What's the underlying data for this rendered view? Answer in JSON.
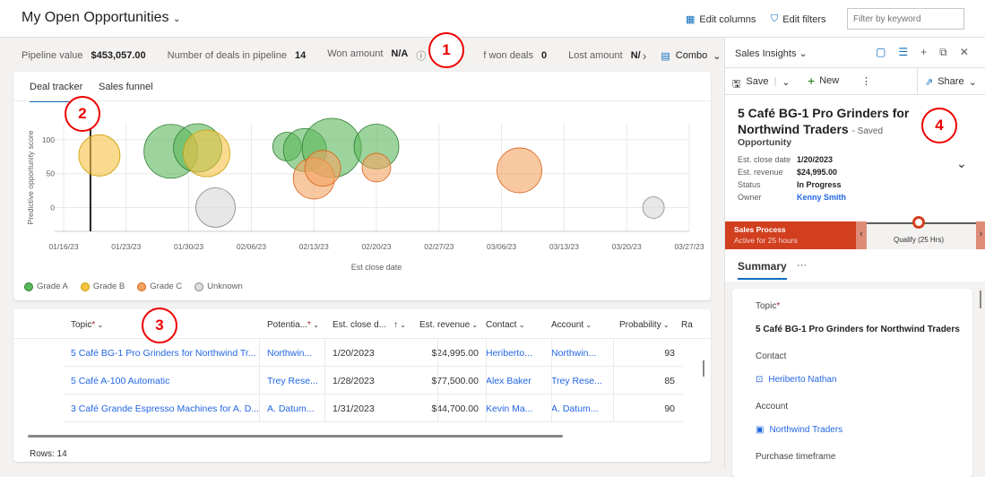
{
  "header": {
    "title": "My Open Opportunities",
    "edit_columns": "Edit columns",
    "edit_filters": "Edit filters",
    "filter_placeholder": "Filter by keyword"
  },
  "kpis": [
    {
      "label": "Pipeline value",
      "value": "$453,057.00"
    },
    {
      "label": "Number of deals in pipeline",
      "value": "14"
    },
    {
      "label": "Won amount",
      "value": "N/A"
    },
    {
      "label": "f won deals",
      "value": "0"
    },
    {
      "label": "Lost amount",
      "value": "N/"
    }
  ],
  "view_selector": "Combo",
  "callouts": [
    "1",
    "2",
    "3",
    "4"
  ],
  "chart_tabs": [
    "Deal tracker",
    "Sales funnel"
  ],
  "chart_data": {
    "type": "scatter",
    "xlabel": "Est close date",
    "ylabel": "Predictive opportunity score",
    "x_ticks": [
      "01/16/23",
      "01/23/23",
      "01/30/23",
      "02/06/23",
      "02/13/23",
      "02/20/23",
      "02/27/23",
      "03/06/23",
      "03/13/23",
      "03/20/23",
      "03/27/23"
    ],
    "y_ticks": [
      "0",
      "50",
      "100"
    ],
    "xlim": [
      "2023-01-16",
      "2023-03-27"
    ],
    "ylim": [
      -35,
      125
    ],
    "grid": true,
    "legend": "bottom-left",
    "today_marker": "2023-01-19",
    "series": [
      {
        "name": "Grade A",
        "color": "#5cb85c",
        "points": [
          {
            "x": "2023-01-28",
            "y": 83,
            "size": 30
          },
          {
            "x": "2023-01-31",
            "y": 88,
            "size": 27
          },
          {
            "x": "2023-02-10",
            "y": 90,
            "size": 16
          },
          {
            "x": "2023-02-12",
            "y": 85,
            "size": 24
          },
          {
            "x": "2023-02-15",
            "y": 88,
            "size": 33
          },
          {
            "x": "2023-02-20",
            "y": 90,
            "size": 25
          }
        ]
      },
      {
        "name": "Grade B",
        "color": "#f5c242",
        "points": [
          {
            "x": "2023-01-20",
            "y": 77,
            "size": 23
          },
          {
            "x": "2023-02-01",
            "y": 80,
            "size": 26
          }
        ]
      },
      {
        "name": "Grade C",
        "color": "#f4a460",
        "points": [
          {
            "x": "2023-02-13",
            "y": 43,
            "size": 23
          },
          {
            "x": "2023-02-14",
            "y": 58,
            "size": 20
          },
          {
            "x": "2023-02-20",
            "y": 59,
            "size": 16
          },
          {
            "x": "2023-03-08",
            "y": 55,
            "size": 25
          }
        ]
      },
      {
        "name": "Unknown",
        "color": "#dddddd",
        "points": [
          {
            "x": "2023-02-02",
            "y": 0,
            "size": 22
          },
          {
            "x": "2023-03-23",
            "y": 0,
            "size": 12
          }
        ]
      }
    ]
  },
  "grid": {
    "columns": [
      "Topic",
      "Potentia...",
      "Est. close d...",
      "Est. revenue",
      "Contact",
      "Account",
      "Probability",
      "Ra"
    ],
    "rows": [
      [
        "5 Café BG-1 Pro Grinders for Northwind Tr...",
        "Northwin...",
        "1/20/2023",
        "$24,995.00",
        "Heriberto...",
        "Northwin...",
        "93"
      ],
      [
        "5 Café A-100 Automatic",
        "Trey Rese...",
        "1/28/2023",
        "$77,500.00",
        "Alex Baker",
        "Trey Rese...",
        "85"
      ],
      [
        "3 Café Grande Espresso Machines for A. D...",
        "A. Datum...",
        "1/31/2023",
        "$44,700.00",
        "Kevin Ma...",
        "A. Datum...",
        "90"
      ]
    ],
    "rows_count": "Rows: 14"
  },
  "panel": {
    "app": "Sales Insights",
    "save": "Save",
    "new": "New",
    "share": "Share",
    "title": "5 Café BG-1 Pro Grinders for Northwind Traders",
    "saved": "- Saved",
    "entity": "Opportunity",
    "fields": [
      {
        "label": "Est. close date",
        "value": "1/20/2023"
      },
      {
        "label": "Est. revenue",
        "value": "$24,995.00"
      },
      {
        "label": "Status",
        "value": "In Progress"
      },
      {
        "label": "Owner",
        "value": "Kenny Smith"
      }
    ],
    "process": {
      "name": "Sales Process",
      "active": "Active for 25 hours",
      "stage": "Qualify  (25 Hrs)"
    },
    "tab": "Summary",
    "more": "···",
    "form": [
      {
        "label": "Topic",
        "value": "5 Café BG-1 Pro Grinders for Northwind Traders"
      },
      {
        "label": "Contact",
        "value": "Heriberto Nathan"
      },
      {
        "label": "Account",
        "value": "Northwind Traders"
      },
      {
        "label": "Purchase timeframe",
        "value": ""
      }
    ]
  }
}
